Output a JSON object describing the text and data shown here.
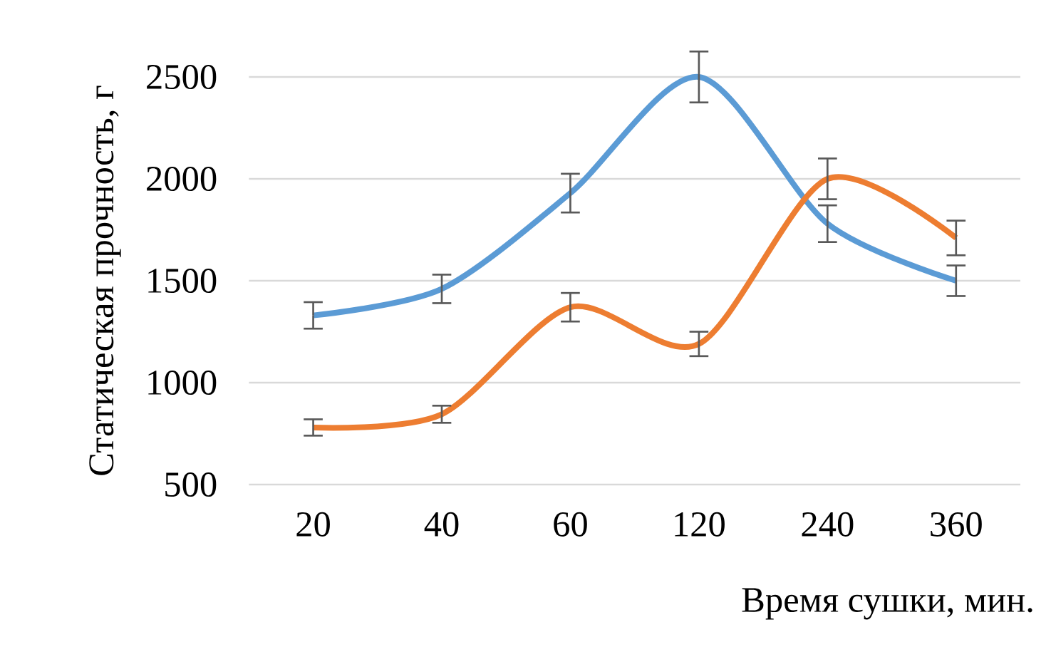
{
  "chart_data": {
    "type": "line",
    "xlabel": "Время сушки, мин.",
    "ylabel": "Статическая прочность, г",
    "categories": [
      "20",
      "40",
      "60",
      "120",
      "240",
      "360"
    ],
    "series": [
      {
        "color": "#5b9bd5",
        "values": [
          1330,
          1460,
          1930,
          2500,
          1780,
          1500
        ],
        "errors": [
          65,
          70,
          95,
          125,
          90,
          75
        ]
      },
      {
        "color": "#ed7d31",
        "values": [
          780,
          845,
          1370,
          1190,
          2000,
          1710
        ],
        "errors": [
          40,
          42,
          70,
          60,
          100,
          85
        ]
      }
    ],
    "ylim": [
      500,
      2500
    ],
    "yticks": [
      500,
      1000,
      1500,
      2000,
      2500
    ],
    "grid": "y",
    "marker": "none",
    "line_style": "solid"
  }
}
